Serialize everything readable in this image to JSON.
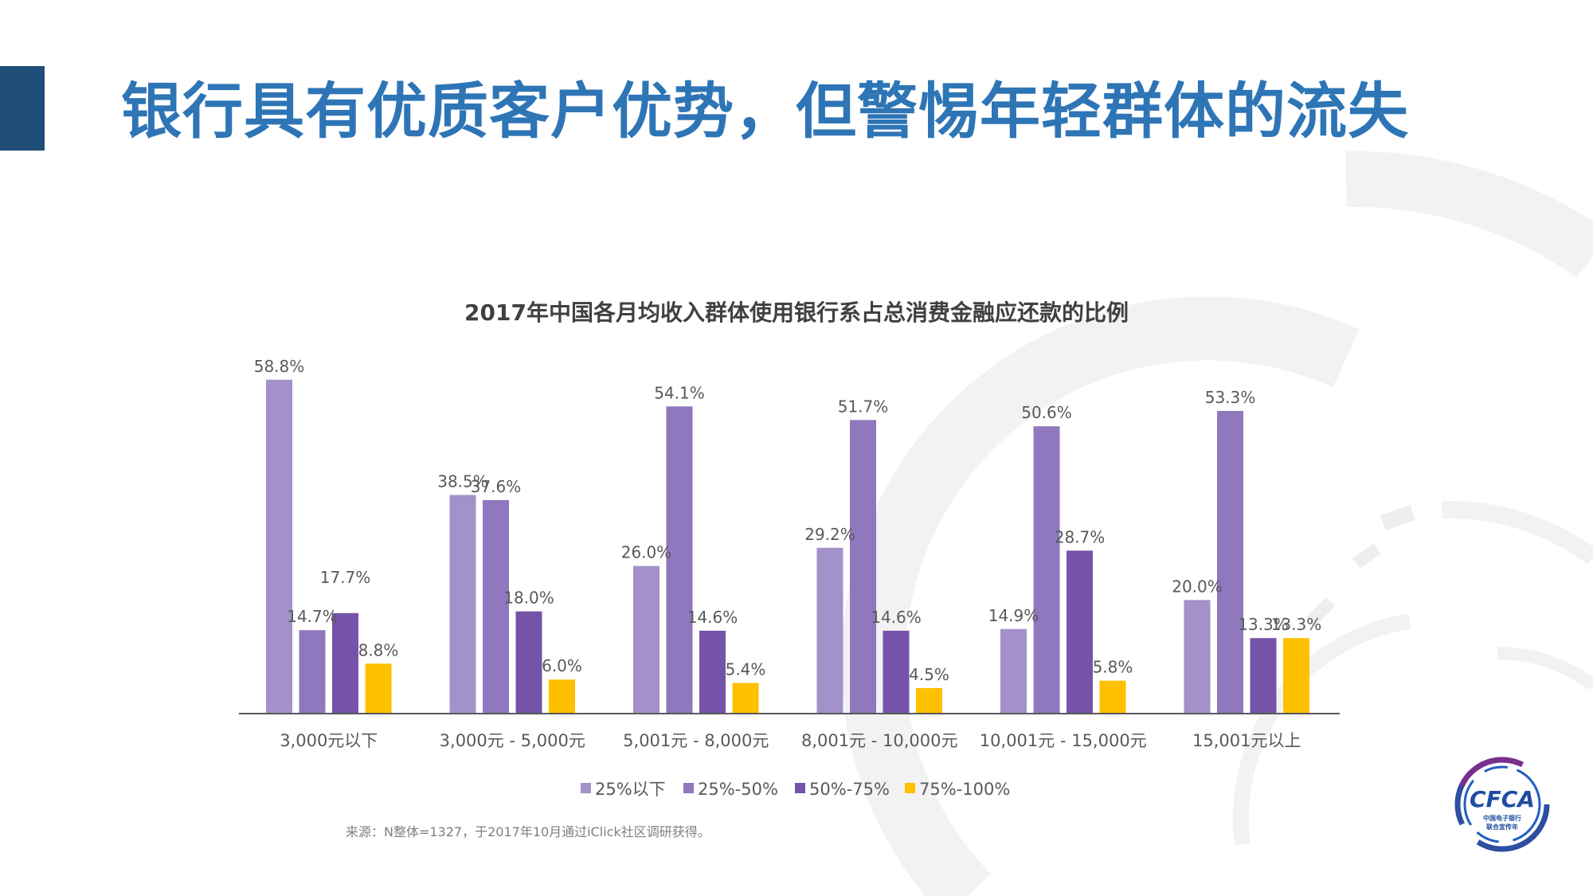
{
  "slide": {
    "title": "银行具有优质客户优势，但警惕年轻群体的流失",
    "source_note": "来源：N整体=1327，于2017年10月通过iClick社区调研获得。",
    "logo": {
      "text": "CFCA",
      "subtext_line1": "中国电子银行",
      "subtext_line2": "联合宣传年"
    }
  },
  "colors": {
    "title": "#2e75b6",
    "accent_bar": "#1f4e79",
    "series": [
      "#a391c9",
      "#8f78bd",
      "#7453a8",
      "#ffc000"
    ],
    "axis": "#595959",
    "text": "#595959"
  },
  "chart_data": {
    "type": "bar",
    "title": "2017年中国各月均收入群体使用银行系占总消费金融应还款的比例",
    "categories": [
      "3,000元以下",
      "3,000元 - 5,000元",
      "5,001元 - 8,000元",
      "8,001元 - 10,000元",
      "10,001元 - 15,000元",
      "15,001元以上"
    ],
    "series": [
      {
        "name": "25%以下",
        "values": [
          58.8,
          38.5,
          26.0,
          29.2,
          14.9,
          20.0
        ],
        "labels": [
          "58.8%",
          "38.5%",
          "26.0%",
          "29.2%",
          "14.9%",
          "20.0%"
        ]
      },
      {
        "name": "25%-50%",
        "values": [
          14.7,
          37.6,
          54.1,
          51.7,
          50.6,
          53.3
        ],
        "labels": [
          "14.7%",
          "37.6%",
          "54.1%",
          "51.7%",
          "50.6%",
          "53.3%"
        ]
      },
      {
        "name": "50%-75%",
        "values": [
          17.7,
          18.0,
          14.6,
          14.6,
          28.7,
          13.3
        ],
        "labels": [
          "17.7%",
          "18.0%",
          "14.6%",
          "14.6%",
          "28.7%",
          "13.3%"
        ]
      },
      {
        "name": "75%-100%",
        "values": [
          8.8,
          6.0,
          5.4,
          4.5,
          5.8,
          13.3
        ],
        "labels": [
          "8.8%",
          "6.0%",
          "5.4%",
          "4.5%",
          "5.8%",
          "13.3%"
        ]
      }
    ],
    "ylim": [
      0,
      60
    ],
    "grid": false,
    "legend_position": "bottom",
    "data_labels": true
  }
}
